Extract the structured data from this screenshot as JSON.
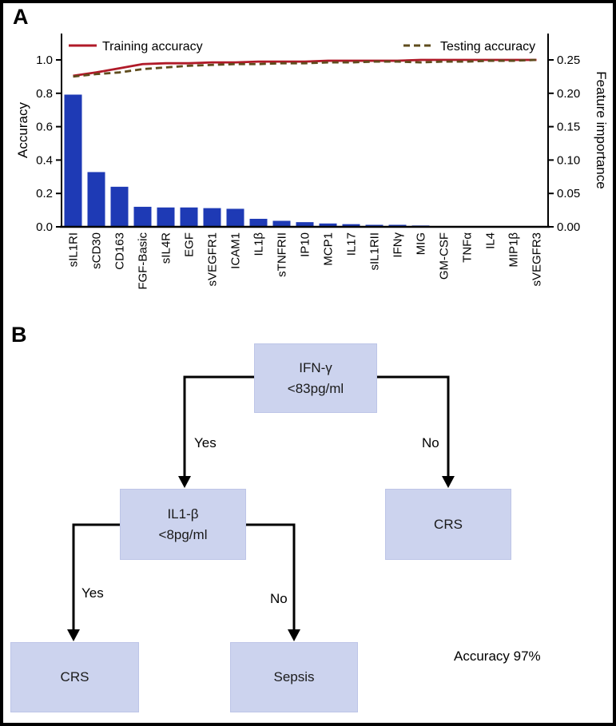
{
  "figure": {
    "panel_a_label": "A",
    "panel_b_label": "B"
  },
  "colors": {
    "bar_blue": "#1e3ab5",
    "training_red": "#b01a28",
    "testing_olive": "#5f4c1d",
    "node_fill": "#ccd3ee",
    "node_border": "#bdc5e7",
    "axis_black": "#000000"
  },
  "chart_data": {
    "type": "bar",
    "title": "",
    "categories": [
      "sIL1RI",
      "sCD30",
      "CD163",
      "FGF-Basic",
      "sIL4R",
      "EGF",
      "sVEGFR1",
      "ICAM1",
      "IL1β",
      "sTNFRII",
      "IP10",
      "MCP1",
      "IL17",
      "sIL1RII",
      "IFNγ",
      "MIG",
      "GM-CSF",
      "TNFα",
      "IL4",
      "MIP1β",
      "sVEGFR3"
    ],
    "bar_series": {
      "name": "Feature importance",
      "axis": "right",
      "values": [
        0.198,
        0.082,
        0.06,
        0.03,
        0.029,
        0.029,
        0.028,
        0.027,
        0.012,
        0.009,
        0.007,
        0.005,
        0.004,
        0.003,
        0.003,
        0.002,
        0.001,
        0.001,
        0.0005,
        0.0005,
        0.0003
      ]
    },
    "line_series": [
      {
        "name": "Training accuracy",
        "axis": "left",
        "style": "solid",
        "color": "#b01a28",
        "values": [
          0.905,
          0.925,
          0.95,
          0.975,
          0.98,
          0.98,
          0.985,
          0.985,
          0.99,
          0.99,
          0.99,
          0.995,
          0.995,
          0.995,
          0.995,
          1.0,
          1.0,
          1.0,
          1.0,
          1.0,
          1.0
        ]
      },
      {
        "name": "Testing accuracy",
        "axis": "left",
        "style": "dashed",
        "color": "#5f4c1d",
        "values": [
          0.9,
          0.915,
          0.925,
          0.945,
          0.955,
          0.965,
          0.97,
          0.975,
          0.975,
          0.98,
          0.98,
          0.985,
          0.985,
          0.99,
          0.99,
          0.985,
          0.99,
          0.99,
          0.995,
          0.995,
          1.0
        ]
      }
    ],
    "left_axis": {
      "label": "Accuracy",
      "ticks": [
        0.0,
        0.2,
        0.4,
        0.6,
        0.8,
        1.0
      ],
      "tick_labels": [
        "0.0",
        "0.2",
        "0.4",
        "0.6",
        "0.8",
        "1.0"
      ],
      "range": [
        0,
        1.16
      ]
    },
    "right_axis": {
      "label": "Feature importance",
      "ticks": [
        0.0,
        0.05,
        0.1,
        0.15,
        0.2,
        0.25
      ],
      "tick_labels": [
        "0.00",
        "0.05",
        "0.10",
        "0.15",
        "0.20",
        "0.25"
      ],
      "range": [
        0,
        0.29
      ]
    },
    "legend_position": "top",
    "grid": false
  },
  "decision_tree": {
    "nodes": {
      "root": {
        "label_line1": "IFN-γ",
        "label_line2": "<83pg/ml"
      },
      "left_child": {
        "label_line1": "IL1-β",
        "label_line2": "<8pg/ml"
      },
      "right_child": {
        "label": "CRS"
      },
      "left_left_leaf": {
        "label": "CRS"
      },
      "left_right_leaf": {
        "label": "Sepsis"
      }
    },
    "edge_labels": {
      "root_yes": "Yes",
      "root_no": "No",
      "level2_yes": "Yes",
      "level2_no": "No"
    },
    "accuracy_note": "Accuracy 97%"
  }
}
